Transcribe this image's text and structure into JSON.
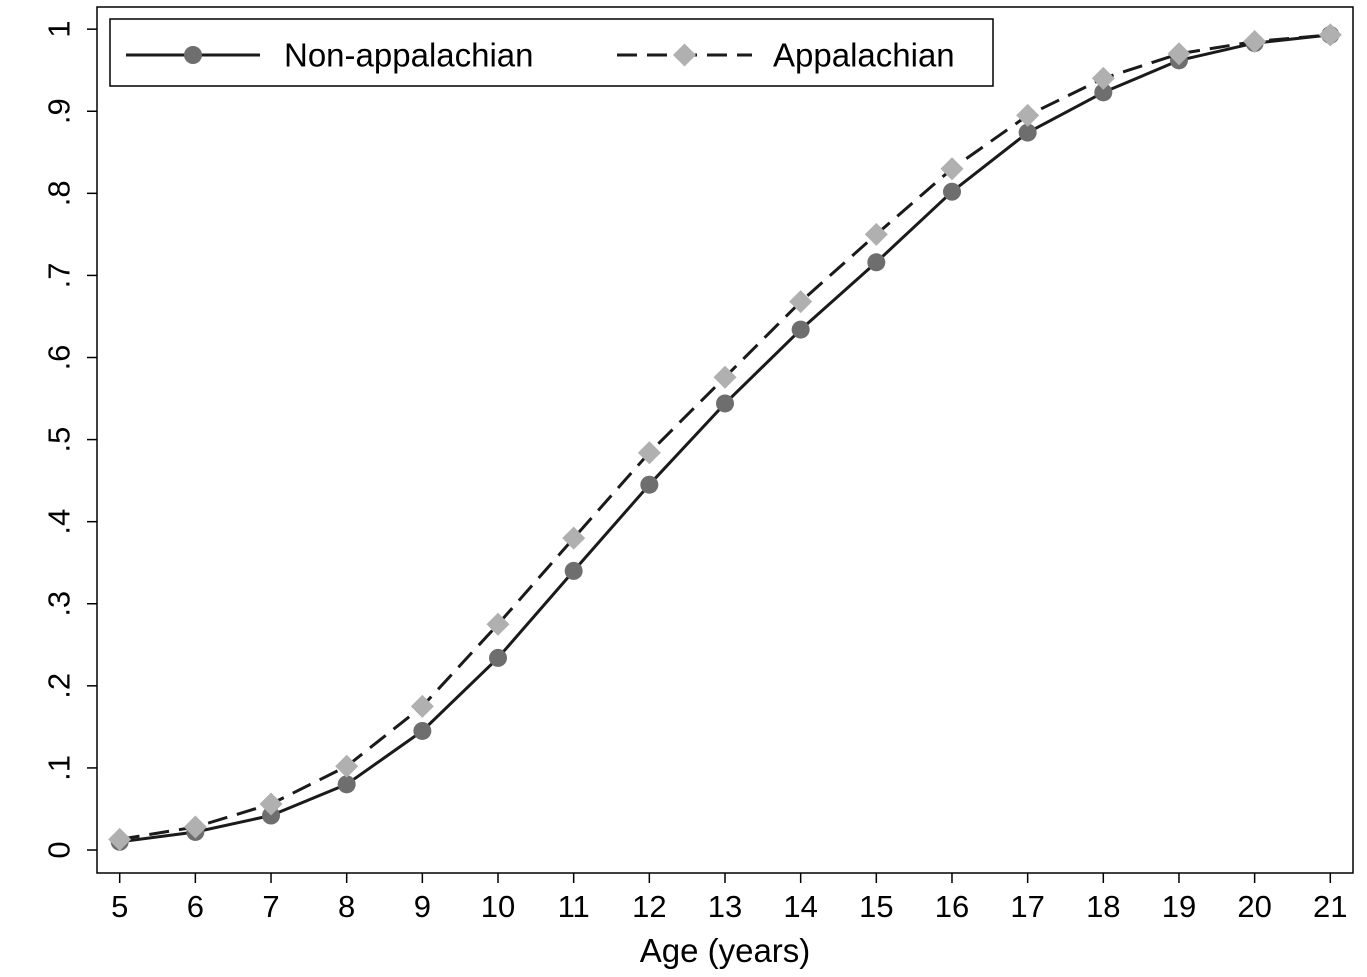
{
  "chart_data": {
    "type": "line",
    "title": "",
    "xlabel": "Age (years)",
    "ylabel": "",
    "x": [
      5,
      6,
      7,
      8,
      9,
      10,
      11,
      12,
      13,
      14,
      15,
      16,
      17,
      18,
      19,
      20,
      21
    ],
    "x_ticks": [
      "5",
      "6",
      "7",
      "8",
      "9",
      "10",
      "11",
      "12",
      "13",
      "14",
      "15",
      "16",
      "17",
      "18",
      "19",
      "20",
      "21"
    ],
    "y_ticks": [
      {
        "value": 0,
        "label": "0"
      },
      {
        "value": 0.1,
        "label": ".1"
      },
      {
        "value": 0.2,
        "label": ".2"
      },
      {
        "value": 0.3,
        "label": ".3"
      },
      {
        "value": 0.4,
        "label": ".4"
      },
      {
        "value": 0.5,
        "label": ".5"
      },
      {
        "value": 0.6,
        "label": ".6"
      },
      {
        "value": 0.7,
        "label": ".7"
      },
      {
        "value": 0.8,
        "label": ".8"
      },
      {
        "value": 0.9,
        "label": ".9"
      },
      {
        "value": 1,
        "label": "1"
      }
    ],
    "xlim": [
      4.7,
      21.3
    ],
    "ylim": [
      -0.028,
      1.027
    ],
    "grid": false,
    "legend_position": "top",
    "series": [
      {
        "name": "Non-appalachian",
        "line_style": "solid",
        "marker": "circle",
        "line_color": "#1a1a1a",
        "marker_color": "#6e6e6e",
        "values": [
          0.01,
          0.022,
          0.042,
          0.08,
          0.145,
          0.234,
          0.34,
          0.445,
          0.544,
          0.634,
          0.716,
          0.802,
          0.874,
          0.923,
          0.962,
          0.983,
          0.993
        ]
      },
      {
        "name": "Appalachian",
        "line_style": "dashed",
        "marker": "diamond",
        "line_color": "#1a1a1a",
        "marker_color": "#b0b0b0",
        "values": [
          0.013,
          0.028,
          0.056,
          0.102,
          0.175,
          0.275,
          0.38,
          0.484,
          0.576,
          0.668,
          0.75,
          0.83,
          0.895,
          0.94,
          0.97,
          0.985,
          0.993
        ]
      }
    ]
  }
}
